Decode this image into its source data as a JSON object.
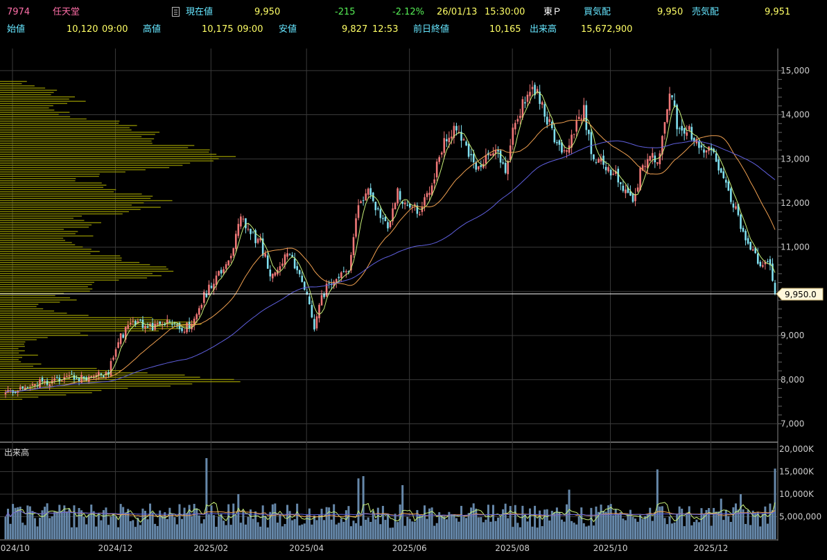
{
  "header": {
    "code": "7974",
    "name": "任天堂",
    "current_label": "現在値",
    "current_value": "9,950",
    "change": "-215",
    "change_pct": "-2.12%",
    "date": "26/01/13",
    "time": "15:30:00",
    "market": "東Ｐ",
    "bid_label": "買気配",
    "bid_value": "9,950",
    "ask_label": "売気配",
    "ask_value": "9,951",
    "open_label": "始値",
    "open_value": "10,120",
    "open_time": "09:00",
    "high_label": "高値",
    "high_value": "10,175",
    "high_time": "09:00",
    "low_label": "安値",
    "low_value": "9,827",
    "low_time": "12:53",
    "prev_close_label": "前日終値",
    "prev_close_value": "10,165",
    "volume_label": "出来高",
    "volume_value": "15,672,900"
  },
  "volume_panel_label": "出来高",
  "price_tag": "9,950.0",
  "colors": {
    "up": "#f07878",
    "down": "#80e0f0",
    "ma_short": "#c8f078",
    "ma_mid": "#f0a050",
    "ma_long": "#6060e0",
    "profile": "#a0a000",
    "volume_bar": "#6688aa",
    "grid": "#3a3a3a"
  },
  "chart_data": {
    "type": "candlestick",
    "y_ticks": [
      "15,000",
      "14,000",
      "13,000",
      "12,000",
      "11,000",
      "10,000",
      "9,000",
      "8,000",
      "7,000"
    ],
    "y_tick_values": [
      15000,
      14000,
      13000,
      12000,
      11000,
      10000,
      9000,
      8000,
      7000
    ],
    "ylim": [
      6600,
      15500
    ],
    "x_ticks": [
      "2024/10",
      "2024/12",
      "2025/02",
      "2025/04",
      "2025/06",
      "2025/08",
      "2025/10",
      "2025/12"
    ],
    "x_tick_index": [
      0,
      42,
      81,
      120,
      162,
      204,
      244,
      285
    ],
    "num_bars": 315,
    "last_close": 9950,
    "close_anchors": [
      [
        0,
        7700
      ],
      [
        6,
        7800
      ],
      [
        12,
        7900
      ],
      [
        20,
        8000
      ],
      [
        30,
        8050
      ],
      [
        38,
        8100
      ],
      [
        42,
        8200
      ],
      [
        46,
        8900
      ],
      [
        52,
        9300
      ],
      [
        60,
        9200
      ],
      [
        66,
        9300
      ],
      [
        72,
        9100
      ],
      [
        76,
        9300
      ],
      [
        80,
        9800
      ],
      [
        86,
        10300
      ],
      [
        92,
        10900
      ],
      [
        96,
        11600
      ],
      [
        100,
        11300
      ],
      [
        104,
        11100
      ],
      [
        108,
        10400
      ],
      [
        112,
        10600
      ],
      [
        116,
        10900
      ],
      [
        120,
        10300
      ],
      [
        124,
        9800
      ],
      [
        126,
        9100
      ],
      [
        128,
        9700
      ],
      [
        132,
        10200
      ],
      [
        136,
        10400
      ],
      [
        140,
        10500
      ],
      [
        144,
        12000
      ],
      [
        148,
        12300
      ],
      [
        152,
        11800
      ],
      [
        156,
        11500
      ],
      [
        160,
        12200
      ],
      [
        164,
        12000
      ],
      [
        168,
        11800
      ],
      [
        172,
        12100
      ],
      [
        176,
        12800
      ],
      [
        180,
        13500
      ],
      [
        184,
        13700
      ],
      [
        188,
        13200
      ],
      [
        192,
        12800
      ],
      [
        196,
        13100
      ],
      [
        200,
        13300
      ],
      [
        204,
        12600
      ],
      [
        208,
        13900
      ],
      [
        212,
        14300
      ],
      [
        216,
        14600
      ],
      [
        220,
        14000
      ],
      [
        224,
        13500
      ],
      [
        228,
        13200
      ],
      [
        232,
        13700
      ],
      [
        236,
        14100
      ],
      [
        240,
        12900
      ],
      [
        244,
        12900
      ],
      [
        248,
        12700
      ],
      [
        252,
        12400
      ],
      [
        254,
        12200
      ],
      [
        256,
        12000
      ],
      [
        260,
        12900
      ],
      [
        264,
        13000
      ],
      [
        266,
        12900
      ],
      [
        270,
        14200
      ],
      [
        272,
        14500
      ],
      [
        274,
        13700
      ],
      [
        278,
        13700
      ],
      [
        282,
        13300
      ],
      [
        286,
        13200
      ],
      [
        290,
        13000
      ],
      [
        294,
        12500
      ],
      [
        298,
        11800
      ],
      [
        300,
        11400
      ],
      [
        304,
        11000
      ],
      [
        308,
        10600
      ],
      [
        312,
        10700
      ],
      [
        314,
        9950
      ]
    ],
    "ma_periods": [
      5,
      25,
      75
    ],
    "y_vol_ticks": [
      "20,000K",
      "15,000K",
      "10,000K",
      "5,000,000"
    ],
    "y_vol_tick_values": [
      20000,
      15000,
      10000,
      5000
    ],
    "vol_ylim": [
      0,
      20000
    ],
    "vol_spikes": [
      [
        82,
        18000
      ],
      [
        95,
        10000
      ],
      [
        144,
        13500
      ],
      [
        146,
        14000
      ],
      [
        162,
        12000
      ],
      [
        230,
        11000
      ],
      [
        266,
        15500
      ],
      [
        292,
        9000
      ],
      [
        300,
        10000
      ],
      [
        314,
        15672
      ]
    ],
    "volume_profile_note": ""
  }
}
